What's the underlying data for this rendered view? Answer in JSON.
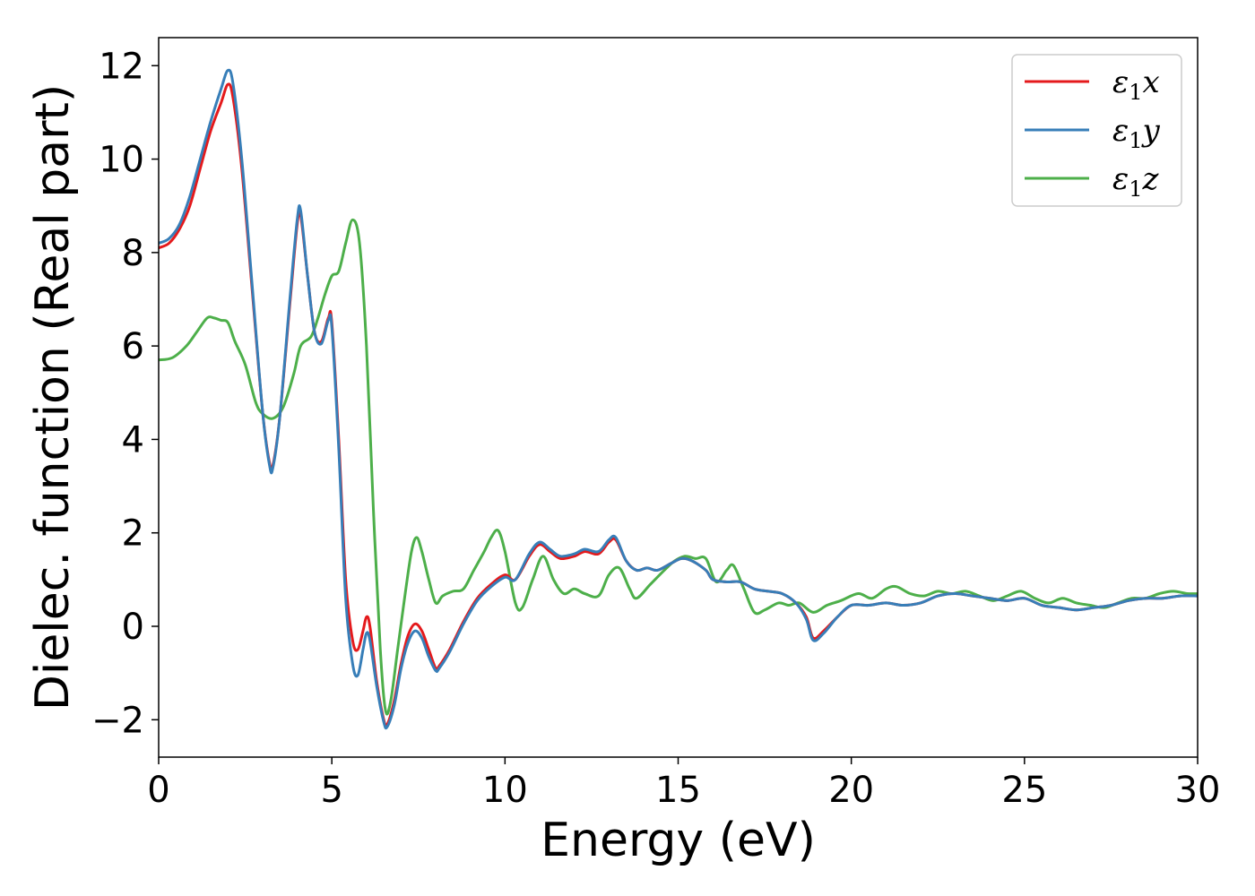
{
  "chart_data": {
    "type": "line",
    "xlabel": "Energy (eV)",
    "ylabel": "Dielec. function (Real part)",
    "xlim": [
      0,
      30
    ],
    "ylim": [
      -2.8,
      12.6
    ],
    "xticks": [
      {
        "value": 0,
        "label": "0"
      },
      {
        "value": 5,
        "label": "5"
      },
      {
        "value": 10,
        "label": "10"
      },
      {
        "value": 15,
        "label": "15"
      },
      {
        "value": 20,
        "label": "20"
      },
      {
        "value": 25,
        "label": "25"
      },
      {
        "value": 30,
        "label": "30"
      }
    ],
    "yticks": [
      {
        "value": -2,
        "label": "−2"
      },
      {
        "value": 0,
        "label": "0"
      },
      {
        "value": 2,
        "label": "2"
      },
      {
        "value": 4,
        "label": "4"
      },
      {
        "value": 6,
        "label": "6"
      },
      {
        "value": 8,
        "label": "8"
      },
      {
        "value": 10,
        "label": "10"
      },
      {
        "value": 12,
        "label": "12"
      }
    ],
    "grid": false,
    "legend": {
      "placement": "top-right"
    },
    "series": [
      {
        "name": "ε₁x",
        "legend_base": "ε",
        "legend_sub": "1",
        "legend_var": "x",
        "color": "#e41a1c",
        "points": [
          [
            0,
            8.1
          ],
          [
            0.3,
            8.2
          ],
          [
            0.6,
            8.5
          ],
          [
            0.9,
            9.0
          ],
          [
            1.2,
            9.8
          ],
          [
            1.5,
            10.6
          ],
          [
            1.8,
            11.2
          ],
          [
            2.0,
            11.6
          ],
          [
            2.15,
            11.3
          ],
          [
            2.4,
            9.8
          ],
          [
            2.7,
            7.2
          ],
          [
            3.0,
            4.6
          ],
          [
            3.2,
            3.5
          ],
          [
            3.3,
            3.45
          ],
          [
            3.5,
            4.5
          ],
          [
            3.8,
            7.0
          ],
          [
            4.0,
            8.6
          ],
          [
            4.1,
            8.8
          ],
          [
            4.3,
            7.5
          ],
          [
            4.5,
            6.3
          ],
          [
            4.7,
            6.1
          ],
          [
            4.9,
            6.6
          ],
          [
            5.0,
            6.5
          ],
          [
            5.2,
            4.0
          ],
          [
            5.4,
            1.0
          ],
          [
            5.6,
            -0.3
          ],
          [
            5.75,
            -0.5
          ],
          [
            5.9,
            -0.1
          ],
          [
            6.0,
            0.2
          ],
          [
            6.1,
            0.0
          ],
          [
            6.3,
            -1.2
          ],
          [
            6.5,
            -2.0
          ],
          [
            6.6,
            -2.1
          ],
          [
            6.8,
            -1.6
          ],
          [
            7.0,
            -0.8
          ],
          [
            7.2,
            -0.2
          ],
          [
            7.4,
            0.05
          ],
          [
            7.6,
            -0.1
          ],
          [
            7.8,
            -0.5
          ],
          [
            8.0,
            -0.9
          ],
          [
            8.1,
            -0.85
          ],
          [
            8.4,
            -0.5
          ],
          [
            8.8,
            0.1
          ],
          [
            9.2,
            0.6
          ],
          [
            9.6,
            0.9
          ],
          [
            10.0,
            1.1
          ],
          [
            10.3,
            1.0
          ],
          [
            10.7,
            1.5
          ],
          [
            11.0,
            1.75
          ],
          [
            11.3,
            1.6
          ],
          [
            11.6,
            1.45
          ],
          [
            12.0,
            1.5
          ],
          [
            12.3,
            1.6
          ],
          [
            12.7,
            1.55
          ],
          [
            13.0,
            1.8
          ],
          [
            13.2,
            1.85
          ],
          [
            13.5,
            1.4
          ],
          [
            13.8,
            1.2
          ],
          [
            14.1,
            1.25
          ],
          [
            14.4,
            1.2
          ],
          [
            14.8,
            1.35
          ],
          [
            15.1,
            1.45
          ],
          [
            15.4,
            1.4
          ],
          [
            15.8,
            1.2
          ],
          [
            16.0,
            1.0
          ],
          [
            16.4,
            0.95
          ],
          [
            16.8,
            0.95
          ],
          [
            17.2,
            0.8
          ],
          [
            17.6,
            0.75
          ],
          [
            18.0,
            0.7
          ],
          [
            18.4,
            0.5
          ],
          [
            18.7,
            0.2
          ],
          [
            18.9,
            -0.25
          ],
          [
            19.2,
            -0.1
          ],
          [
            19.6,
            0.2
          ],
          [
            20.0,
            0.45
          ],
          [
            20.5,
            0.45
          ],
          [
            21.0,
            0.5
          ],
          [
            21.5,
            0.45
          ],
          [
            22.0,
            0.5
          ],
          [
            22.5,
            0.65
          ],
          [
            23.0,
            0.7
          ],
          [
            23.5,
            0.65
          ],
          [
            24.0,
            0.6
          ],
          [
            24.5,
            0.55
          ],
          [
            25.0,
            0.6
          ],
          [
            25.5,
            0.45
          ],
          [
            26.0,
            0.4
          ],
          [
            26.5,
            0.35
          ],
          [
            27.0,
            0.4
          ],
          [
            27.5,
            0.45
          ],
          [
            28.0,
            0.55
          ],
          [
            28.5,
            0.6
          ],
          [
            29.0,
            0.6
          ],
          [
            29.5,
            0.65
          ],
          [
            30.0,
            0.65
          ]
        ]
      },
      {
        "name": "ε₁y",
        "legend_base": "ε",
        "legend_sub": "1",
        "legend_var": "y",
        "color": "#377eb8",
        "points": [
          [
            0,
            8.2
          ],
          [
            0.3,
            8.3
          ],
          [
            0.6,
            8.6
          ],
          [
            0.9,
            9.2
          ],
          [
            1.2,
            10.0
          ],
          [
            1.5,
            10.8
          ],
          [
            1.8,
            11.5
          ],
          [
            2.0,
            11.9
          ],
          [
            2.15,
            11.6
          ],
          [
            2.4,
            10.0
          ],
          [
            2.7,
            7.3
          ],
          [
            3.0,
            4.6
          ],
          [
            3.2,
            3.45
          ],
          [
            3.3,
            3.4
          ],
          [
            3.5,
            4.5
          ],
          [
            3.8,
            7.1
          ],
          [
            4.0,
            8.7
          ],
          [
            4.1,
            8.9
          ],
          [
            4.3,
            7.5
          ],
          [
            4.5,
            6.3
          ],
          [
            4.7,
            6.05
          ],
          [
            4.9,
            6.55
          ],
          [
            5.0,
            6.4
          ],
          [
            5.2,
            3.8
          ],
          [
            5.4,
            0.6
          ],
          [
            5.6,
            -0.8
          ],
          [
            5.75,
            -1.05
          ],
          [
            5.9,
            -0.5
          ],
          [
            6.0,
            -0.15
          ],
          [
            6.1,
            -0.3
          ],
          [
            6.3,
            -1.3
          ],
          [
            6.5,
            -2.05
          ],
          [
            6.6,
            -2.15
          ],
          [
            6.8,
            -1.7
          ],
          [
            7.0,
            -0.9
          ],
          [
            7.2,
            -0.35
          ],
          [
            7.4,
            -0.1
          ],
          [
            7.6,
            -0.25
          ],
          [
            7.8,
            -0.65
          ],
          [
            8.0,
            -0.95
          ],
          [
            8.1,
            -0.9
          ],
          [
            8.4,
            -0.55
          ],
          [
            8.8,
            0.05
          ],
          [
            9.2,
            0.55
          ],
          [
            9.6,
            0.85
          ],
          [
            10.0,
            1.05
          ],
          [
            10.3,
            1.0
          ],
          [
            10.7,
            1.55
          ],
          [
            11.0,
            1.8
          ],
          [
            11.3,
            1.65
          ],
          [
            11.6,
            1.5
          ],
          [
            12.0,
            1.55
          ],
          [
            12.3,
            1.65
          ],
          [
            12.7,
            1.6
          ],
          [
            13.0,
            1.85
          ],
          [
            13.2,
            1.9
          ],
          [
            13.5,
            1.4
          ],
          [
            13.8,
            1.2
          ],
          [
            14.1,
            1.25
          ],
          [
            14.4,
            1.2
          ],
          [
            14.8,
            1.35
          ],
          [
            15.1,
            1.45
          ],
          [
            15.4,
            1.4
          ],
          [
            15.8,
            1.2
          ],
          [
            16.0,
            1.0
          ],
          [
            16.4,
            0.95
          ],
          [
            16.8,
            0.95
          ],
          [
            17.2,
            0.8
          ],
          [
            17.6,
            0.75
          ],
          [
            18.0,
            0.7
          ],
          [
            18.4,
            0.5
          ],
          [
            18.7,
            0.15
          ],
          [
            18.9,
            -0.3
          ],
          [
            19.2,
            -0.15
          ],
          [
            19.6,
            0.2
          ],
          [
            20.0,
            0.45
          ],
          [
            20.5,
            0.45
          ],
          [
            21.0,
            0.5
          ],
          [
            21.5,
            0.45
          ],
          [
            22.0,
            0.5
          ],
          [
            22.5,
            0.65
          ],
          [
            23.0,
            0.7
          ],
          [
            23.5,
            0.65
          ],
          [
            24.0,
            0.6
          ],
          [
            24.5,
            0.55
          ],
          [
            25.0,
            0.6
          ],
          [
            25.5,
            0.45
          ],
          [
            26.0,
            0.4
          ],
          [
            26.5,
            0.35
          ],
          [
            27.0,
            0.4
          ],
          [
            27.5,
            0.45
          ],
          [
            28.0,
            0.55
          ],
          [
            28.5,
            0.6
          ],
          [
            29.0,
            0.6
          ],
          [
            29.5,
            0.65
          ],
          [
            30.0,
            0.65
          ]
        ]
      },
      {
        "name": "ε₁z",
        "legend_base": "ε",
        "legend_sub": "1",
        "legend_var": "z",
        "color": "#4daf4a",
        "points": [
          [
            0,
            5.7
          ],
          [
            0.4,
            5.75
          ],
          [
            0.8,
            6.0
          ],
          [
            1.1,
            6.3
          ],
          [
            1.4,
            6.6
          ],
          [
            1.6,
            6.6
          ],
          [
            1.8,
            6.55
          ],
          [
            2.0,
            6.5
          ],
          [
            2.2,
            6.1
          ],
          [
            2.5,
            5.6
          ],
          [
            2.8,
            4.8
          ],
          [
            3.0,
            4.55
          ],
          [
            3.3,
            4.45
          ],
          [
            3.6,
            4.7
          ],
          [
            3.9,
            5.4
          ],
          [
            4.1,
            6.0
          ],
          [
            4.4,
            6.2
          ],
          [
            4.6,
            6.6
          ],
          [
            4.8,
            7.1
          ],
          [
            5.0,
            7.5
          ],
          [
            5.2,
            7.6
          ],
          [
            5.4,
            8.2
          ],
          [
            5.6,
            8.7
          ],
          [
            5.8,
            8.2
          ],
          [
            6.0,
            6.0
          ],
          [
            6.2,
            2.5
          ],
          [
            6.4,
            -0.5
          ],
          [
            6.55,
            -1.8
          ],
          [
            6.7,
            -1.6
          ],
          [
            6.9,
            -0.5
          ],
          [
            7.1,
            0.6
          ],
          [
            7.3,
            1.6
          ],
          [
            7.45,
            1.9
          ],
          [
            7.6,
            1.6
          ],
          [
            7.8,
            1.0
          ],
          [
            8.0,
            0.5
          ],
          [
            8.2,
            0.65
          ],
          [
            8.5,
            0.75
          ],
          [
            8.8,
            0.8
          ],
          [
            9.1,
            1.2
          ],
          [
            9.4,
            1.6
          ],
          [
            9.6,
            1.9
          ],
          [
            9.8,
            2.05
          ],
          [
            10.0,
            1.6
          ],
          [
            10.3,
            0.5
          ],
          [
            10.5,
            0.4
          ],
          [
            10.8,
            1.0
          ],
          [
            11.1,
            1.5
          ],
          [
            11.4,
            1.0
          ],
          [
            11.7,
            0.7
          ],
          [
            12.0,
            0.8
          ],
          [
            12.3,
            0.7
          ],
          [
            12.7,
            0.65
          ],
          [
            13.0,
            1.1
          ],
          [
            13.3,
            1.25
          ],
          [
            13.6,
            0.8
          ],
          [
            13.8,
            0.6
          ],
          [
            14.2,
            0.9
          ],
          [
            14.6,
            1.2
          ],
          [
            14.9,
            1.4
          ],
          [
            15.2,
            1.5
          ],
          [
            15.5,
            1.45
          ],
          [
            15.8,
            1.45
          ],
          [
            16.1,
            0.95
          ],
          [
            16.4,
            1.2
          ],
          [
            16.6,
            1.3
          ],
          [
            16.9,
            0.8
          ],
          [
            17.2,
            0.3
          ],
          [
            17.5,
            0.35
          ],
          [
            17.9,
            0.5
          ],
          [
            18.2,
            0.45
          ],
          [
            18.5,
            0.5
          ],
          [
            18.9,
            0.3
          ],
          [
            19.3,
            0.45
          ],
          [
            19.7,
            0.55
          ],
          [
            20.2,
            0.7
          ],
          [
            20.6,
            0.6
          ],
          [
            21.0,
            0.8
          ],
          [
            21.3,
            0.85
          ],
          [
            21.7,
            0.7
          ],
          [
            22.1,
            0.65
          ],
          [
            22.5,
            0.75
          ],
          [
            22.9,
            0.7
          ],
          [
            23.3,
            0.75
          ],
          [
            23.7,
            0.65
          ],
          [
            24.1,
            0.55
          ],
          [
            24.5,
            0.65
          ],
          [
            24.9,
            0.75
          ],
          [
            25.3,
            0.6
          ],
          [
            25.7,
            0.5
          ],
          [
            26.1,
            0.6
          ],
          [
            26.5,
            0.5
          ],
          [
            26.9,
            0.45
          ],
          [
            27.3,
            0.4
          ],
          [
            27.7,
            0.5
          ],
          [
            28.1,
            0.6
          ],
          [
            28.5,
            0.6
          ],
          [
            28.9,
            0.7
          ],
          [
            29.3,
            0.75
          ],
          [
            29.7,
            0.7
          ],
          [
            30.0,
            0.7
          ]
        ]
      }
    ]
  }
}
